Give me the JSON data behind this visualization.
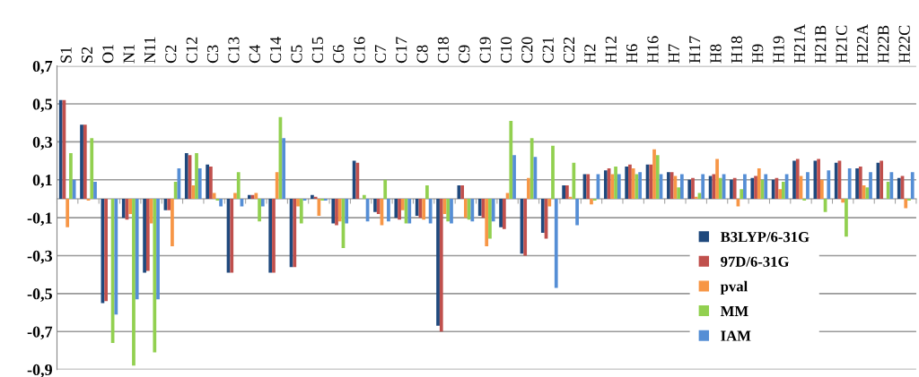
{
  "chart_data": {
    "type": "bar",
    "categories": [
      "S1",
      "S2",
      "O1",
      "N1",
      "N11",
      "C2",
      "C12",
      "C3",
      "C13",
      "C4",
      "C14",
      "C5",
      "C15",
      "C6",
      "C16",
      "C7",
      "C17",
      "C8",
      "C18",
      "C9",
      "C19",
      "C10",
      "C20",
      "C21",
      "C22",
      "H2",
      "H12",
      "H6",
      "H16",
      "H7",
      "H17",
      "H8",
      "H18",
      "H9",
      "H19",
      "H21A",
      "H21B",
      "H21C",
      "H22A",
      "H22B",
      "H22C"
    ],
    "series": [
      {
        "name": "B3LYP/6-31G",
        "color": "#1f497d",
        "values": [
          0.52,
          0.39,
          -0.55,
          -0.1,
          -0.39,
          -0.06,
          0.24,
          0.18,
          -0.39,
          0.02,
          -0.39,
          -0.36,
          0.02,
          -0.13,
          0.2,
          -0.07,
          -0.1,
          -0.09,
          -0.67,
          0.07,
          -0.09,
          -0.15,
          -0.29,
          -0.18,
          0.07,
          0.13,
          0.15,
          0.17,
          0.18,
          0.14,
          0.1,
          0.12,
          0.1,
          0.11,
          0.1,
          0.2,
          0.2,
          0.19,
          0.16,
          0.19,
          0.11
        ]
      },
      {
        "name": "97D/6-31G",
        "color": "#c0504d",
        "values": [
          0.52,
          0.39,
          -0.54,
          -0.11,
          -0.38,
          -0.06,
          0.23,
          0.17,
          -0.39,
          0.02,
          -0.39,
          -0.36,
          0.01,
          -0.14,
          0.19,
          -0.08,
          -0.11,
          -0.1,
          -0.7,
          0.07,
          -0.1,
          -0.16,
          -0.3,
          -0.21,
          0.07,
          0.13,
          0.16,
          0.18,
          0.18,
          0.14,
          0.11,
          0.13,
          0.11,
          0.12,
          0.11,
          0.21,
          0.21,
          0.2,
          0.17,
          0.2,
          0.12
        ]
      },
      {
        "name": "pval",
        "color": "#f79646",
        "values": [
          -0.15,
          -0.01,
          0.0,
          -0.08,
          -0.13,
          -0.25,
          0.07,
          0.03,
          0.03,
          0.03,
          0.14,
          -0.04,
          -0.09,
          -0.12,
          0.0,
          -0.14,
          -0.06,
          -0.11,
          -0.08,
          -0.1,
          -0.25,
          0.03,
          0.11,
          -0.04,
          0.01,
          -0.03,
          0.13,
          0.16,
          0.26,
          0.12,
          0.01,
          0.21,
          -0.04,
          0.16,
          0.05,
          0.12,
          0.1,
          -0.02,
          0.07,
          0.0,
          -0.05
        ]
      },
      {
        "name": "MM",
        "color": "#92d050",
        "values": [
          0.24,
          0.32,
          -0.76,
          -0.88,
          -0.81,
          0.09,
          0.24,
          -0.01,
          0.14,
          -0.12,
          0.43,
          -0.13,
          -0.01,
          -0.26,
          0.02,
          0.1,
          -0.13,
          0.07,
          -0.12,
          -0.11,
          -0.21,
          0.41,
          0.32,
          0.28,
          0.19,
          -0.01,
          0.17,
          0.13,
          0.23,
          0.06,
          0.03,
          0.11,
          0.05,
          0.1,
          0.09,
          -0.01,
          -0.07,
          -0.2,
          0.06,
          0.09,
          -0.01
        ]
      },
      {
        "name": "IAM",
        "color": "#558ed5",
        "values": [
          0.1,
          0.09,
          -0.61,
          -0.53,
          -0.53,
          0.16,
          0.16,
          -0.04,
          -0.04,
          -0.04,
          0.32,
          -0.01,
          -0.01,
          -0.13,
          -0.12,
          -0.12,
          -0.13,
          -0.13,
          -0.13,
          -0.12,
          -0.12,
          0.23,
          0.22,
          -0.47,
          -0.14,
          0.13,
          0.13,
          0.14,
          0.13,
          0.13,
          0.13,
          0.13,
          0.13,
          0.13,
          0.13,
          0.14,
          0.15,
          0.16,
          0.14,
          0.14,
          0.14
        ]
      }
    ],
    "ylim": [
      -0.9,
      0.7
    ],
    "yticks": [
      {
        "value": -0.9,
        "label": "-0,9"
      },
      {
        "value": -0.7,
        "label": "-0,7"
      },
      {
        "value": -0.5,
        "label": "-0,5"
      },
      {
        "value": -0.3,
        "label": "-0,3"
      },
      {
        "value": -0.1,
        "label": "-0,1"
      },
      {
        "value": 0.1,
        "label": "0,1"
      },
      {
        "value": 0.3,
        "label": "0,3"
      },
      {
        "value": 0.5,
        "label": "0,5"
      },
      {
        "value": 0.7,
        "label": "0,7"
      }
    ],
    "grid": "y",
    "legend": "bottom right"
  }
}
